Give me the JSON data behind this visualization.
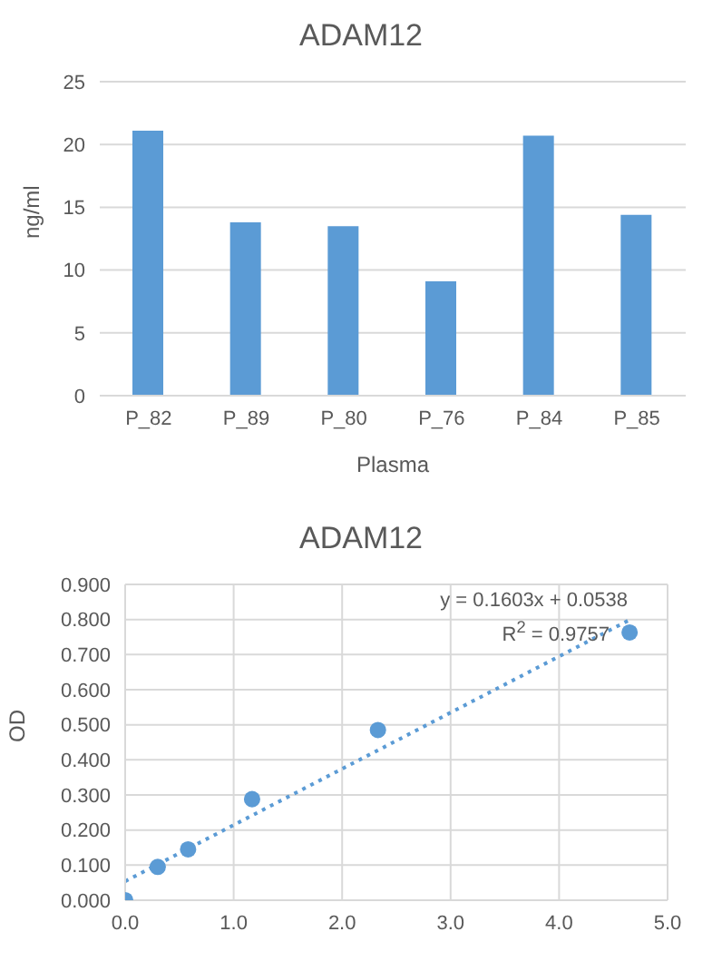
{
  "chart_data": [
    {
      "type": "bar",
      "title": "ADAM12",
      "xlabel": "Plasma",
      "ylabel": "ng/ml",
      "categories": [
        "P_82",
        "P_89",
        "P_80",
        "P_76",
        "P_84",
        "P_85"
      ],
      "values": [
        21.1,
        13.8,
        13.5,
        9.1,
        20.7,
        14.4
      ],
      "color": "#5b9bd5",
      "ylim": [
        0,
        25
      ],
      "yticks": [
        0,
        5,
        10,
        15,
        20,
        25
      ],
      "grid": "y",
      "legend": false
    },
    {
      "type": "scatter",
      "title": "ADAM12",
      "ylabel": "OD",
      "series": [
        {
          "type": "scatter",
          "color": "#5b9bd5",
          "marker": "circle",
          "x": [
            0,
            0.3,
            0.58,
            1.17,
            2.33,
            4.65
          ],
          "values": [
            0.0,
            0.095,
            0.145,
            0.288,
            0.485,
            0.763
          ]
        },
        {
          "type": "line",
          "color": "#5b9bd5",
          "marker": "none",
          "line_style": "dotted",
          "x": [
            0,
            4.65
          ],
          "values": [
            0.054,
            0.799
          ]
        }
      ],
      "xlim": [
        0,
        5
      ],
      "xticks": [
        {
          "value": 0,
          "label": "0.0"
        },
        {
          "value": 1,
          "label": "1.0"
        },
        {
          "value": 2,
          "label": "2.0"
        },
        {
          "value": 3,
          "label": "3.0"
        },
        {
          "value": 4,
          "label": "4.0"
        },
        {
          "value": 5,
          "label": "5.0"
        }
      ],
      "ylim": [
        0,
        0.9
      ],
      "yticks": [
        {
          "value": 0,
          "label": "0.000"
        },
        {
          "value": 0.1,
          "label": "0.100"
        },
        {
          "value": 0.2,
          "label": "0.200"
        },
        {
          "value": 0.3,
          "label": "0.300"
        },
        {
          "value": 0.4,
          "label": "0.400"
        },
        {
          "value": 0.5,
          "label": "0.500"
        },
        {
          "value": 0.6,
          "label": "0.600"
        },
        {
          "value": 0.7,
          "label": "0.700"
        },
        {
          "value": 0.8,
          "label": "0.800"
        },
        {
          "value": 0.9,
          "label": "0.900"
        }
      ],
      "grid": true,
      "legend": false,
      "annotations": [
        "y = 0.1603x + 0.0538",
        "R$^{2}$ = 0.9757"
      ]
    }
  ]
}
